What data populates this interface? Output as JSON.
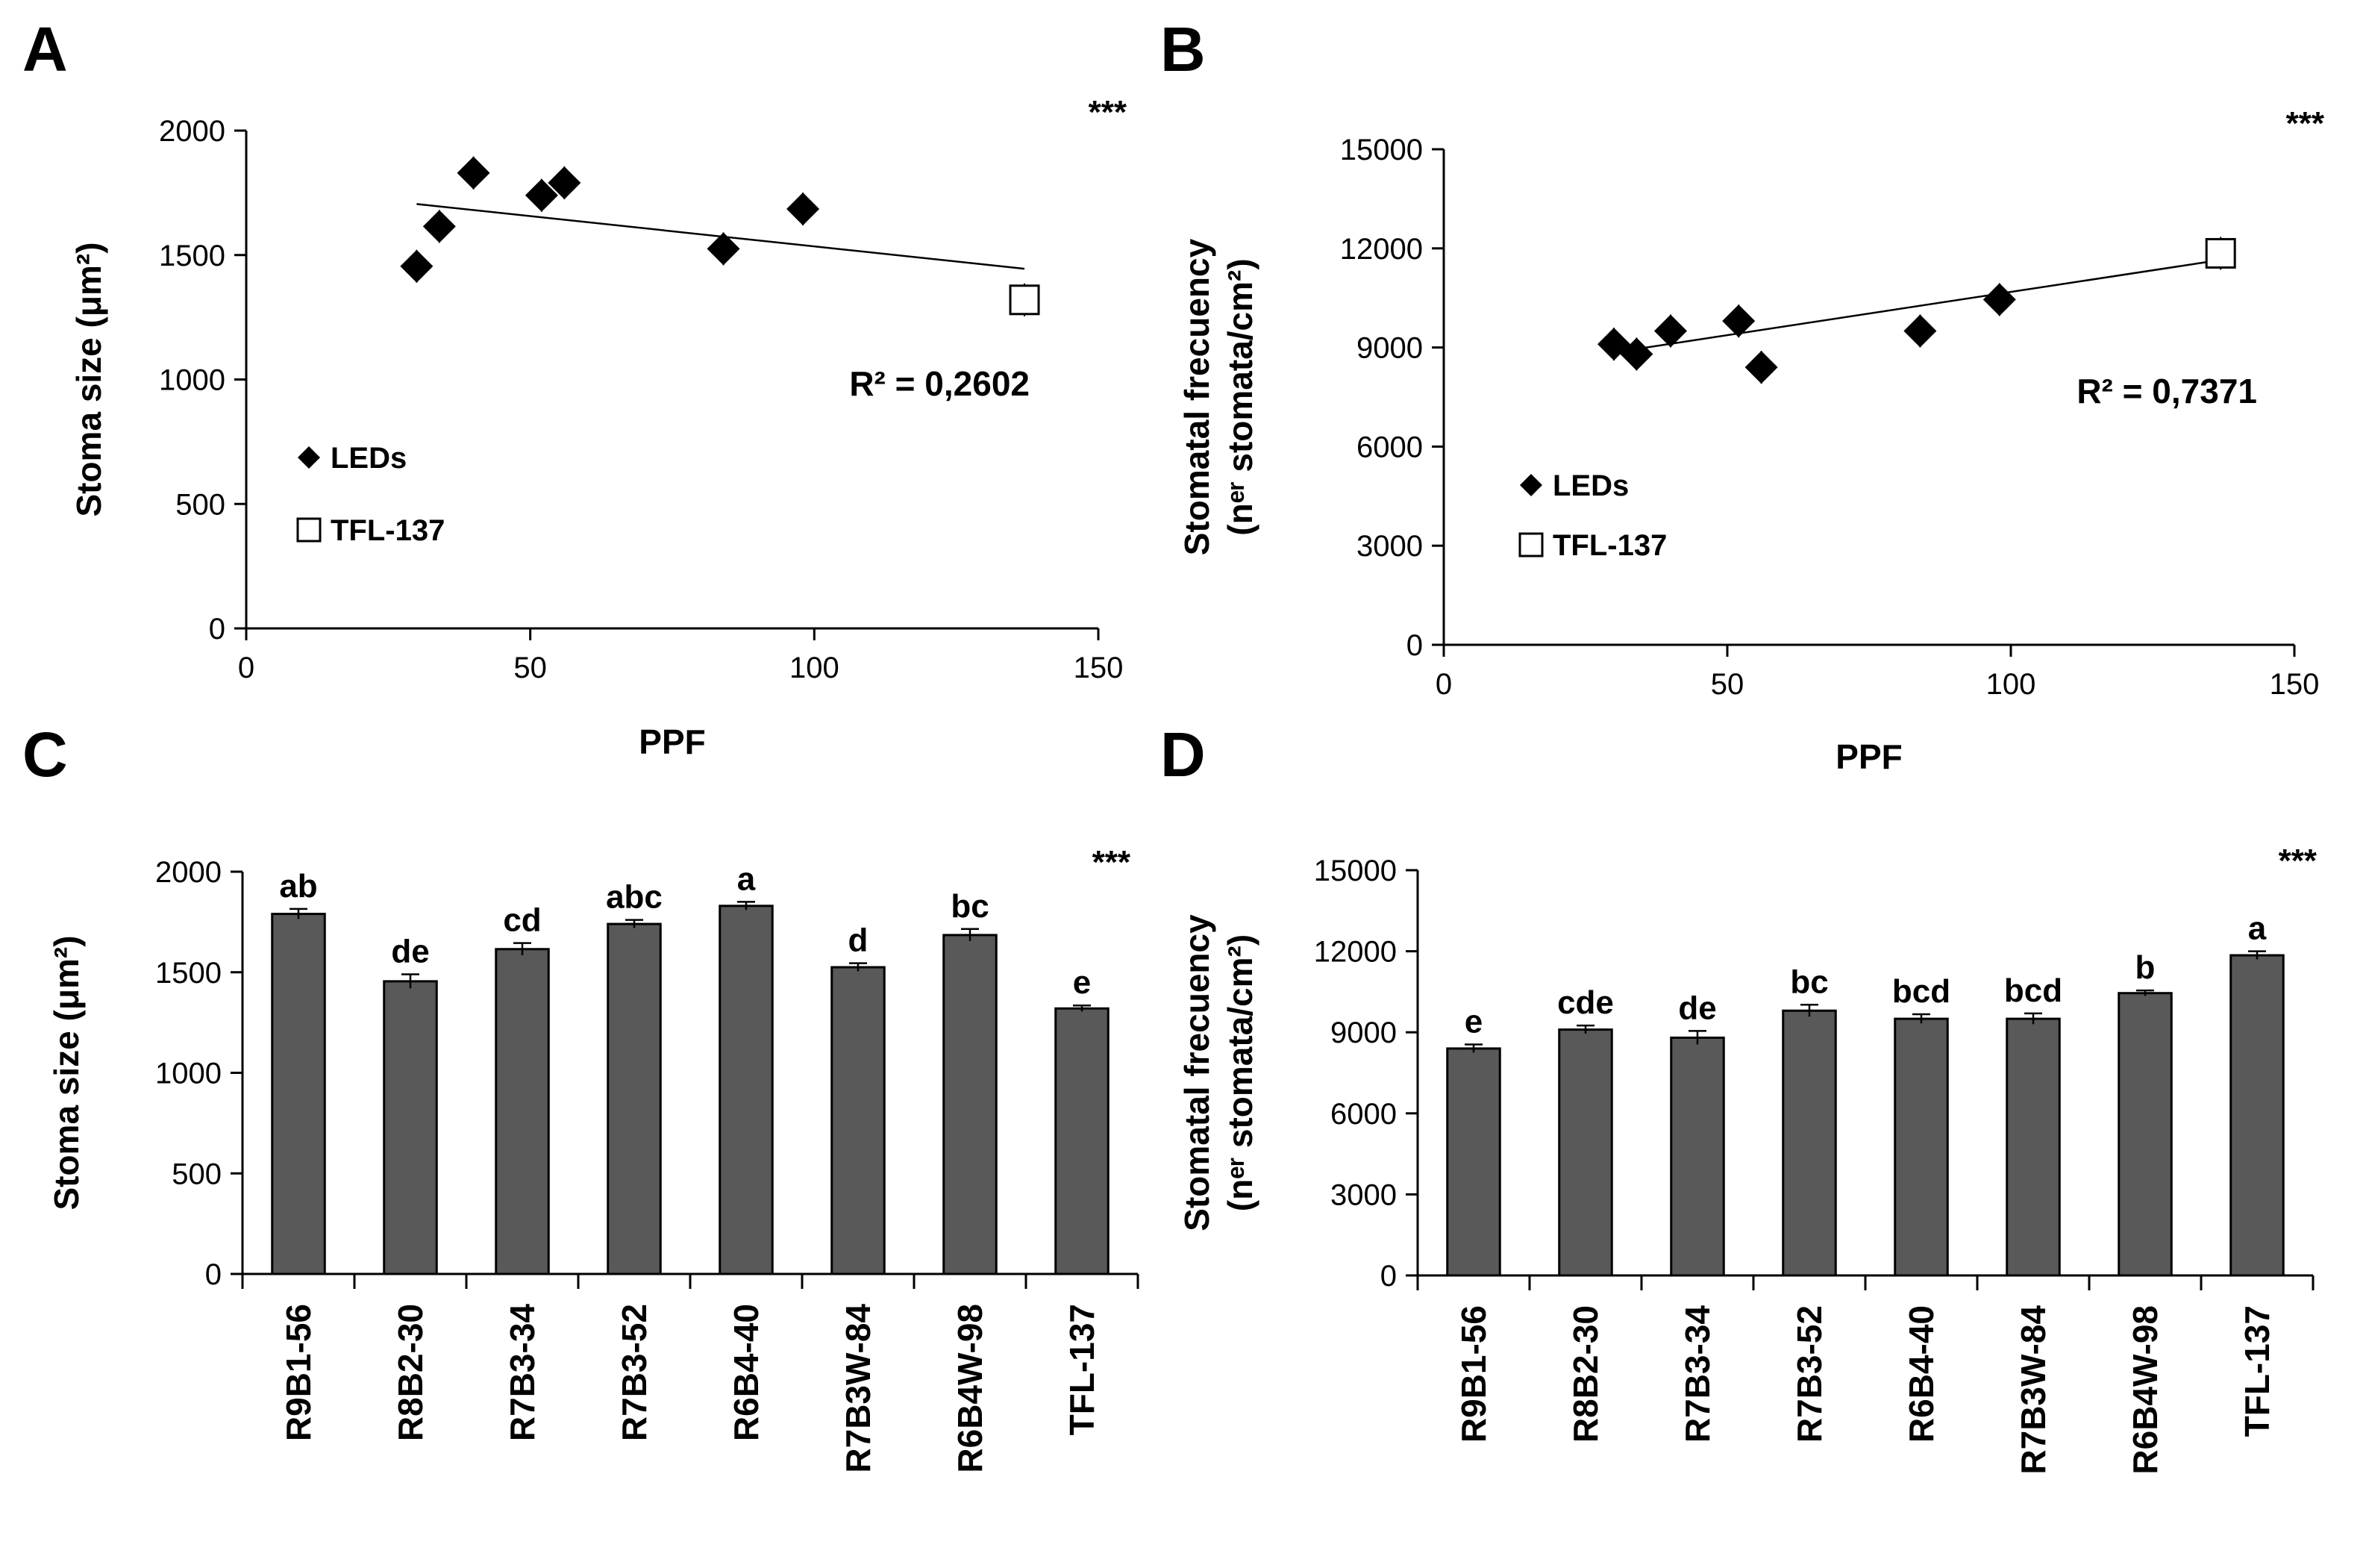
{
  "chart_data": [
    {
      "panel": "A",
      "type": "scatter",
      "xlabel": "PPF",
      "ylabel": "Stoma size (μm²)",
      "xlim": [
        0,
        150
      ],
      "ylim": [
        0,
        2000
      ],
      "xticks": [
        0,
        50,
        100,
        150
      ],
      "yticks": [
        0,
        500,
        1000,
        1500,
        2000
      ],
      "series": [
        {
          "name": "LEDs",
          "marker": "filled-diamond",
          "x": [
            30,
            34,
            40,
            52,
            56,
            84,
            98
          ],
          "y": [
            1455,
            1615,
            1830,
            1740,
            1790,
            1525,
            1685
          ]
        },
        {
          "name": "TFL-137",
          "marker": "open-square",
          "x": [
            137
          ],
          "y": [
            1320
          ]
        }
      ],
      "trendline": {
        "x": [
          30,
          137
        ],
        "y": [
          1705,
          1445
        ]
      },
      "r2_label": "R² = 0,2602",
      "significance": "***",
      "legend_position": "center-left"
    },
    {
      "panel": "B",
      "type": "scatter",
      "xlabel": "PPF",
      "ylabel_line1": "Stomatal frecuency",
      "ylabel_line2": "(nᵉʳ stomata/cm²)",
      "xlim": [
        0,
        150
      ],
      "ylim": [
        0,
        15000
      ],
      "xticks": [
        0,
        50,
        100,
        150
      ],
      "yticks": [
        0,
        3000,
        6000,
        9000,
        12000,
        15000
      ],
      "series": [
        {
          "name": "LEDs",
          "marker": "filled-diamond",
          "x": [
            30,
            34,
            40,
            52,
            56,
            84,
            98
          ],
          "y": [
            9100,
            8800,
            9500,
            9800,
            8400,
            9500,
            10450
          ]
        },
        {
          "name": "TFL-137",
          "marker": "open-square",
          "x": [
            137
          ],
          "y": [
            11850
          ]
        }
      ],
      "trendline": {
        "x": [
          30,
          137
        ],
        "y": [
          8850,
          11650
        ]
      },
      "r2_label": "R² = 0,7371",
      "significance": "***",
      "legend_position": "bottom-left"
    },
    {
      "panel": "C",
      "type": "bar",
      "ylabel": "Stoma size (μm²)",
      "ylim": [
        0,
        2000
      ],
      "yticks": [
        0,
        500,
        1000,
        1500,
        2000
      ],
      "categories": [
        "R9B1-56",
        "R8B2-30",
        "R7B3-34",
        "R7B3-52",
        "R6B4-40",
        "R7B3W-84",
        "R6B4W-98",
        "TFL-137"
      ],
      "values": [
        1790,
        1455,
        1615,
        1740,
        1830,
        1525,
        1685,
        1320
      ],
      "errors": [
        25,
        35,
        30,
        20,
        20,
        20,
        30,
        15
      ],
      "letters": [
        "ab",
        "de",
        "cd",
        "abc",
        "a",
        "d",
        "bc",
        "e"
      ],
      "significance": "***"
    },
    {
      "panel": "D",
      "type": "bar",
      "ylabel_line1": "Stomatal frecuency",
      "ylabel_line2": "(nᵉʳ stomata/cm²)",
      "ylim": [
        0,
        15000
      ],
      "yticks": [
        0,
        3000,
        6000,
        9000,
        12000,
        15000
      ],
      "categories": [
        "R9B1-56",
        "R8B2-30",
        "R7B3-34",
        "R7B3-52",
        "R6B4-40",
        "R7B3W-84",
        "R6B4W-98",
        "TFL-137"
      ],
      "values": [
        8400,
        9100,
        8800,
        9800,
        9500,
        9500,
        10450,
        11850
      ],
      "errors": [
        150,
        150,
        250,
        220,
        170,
        200,
        100,
        150
      ],
      "letters": [
        "e",
        "cde",
        "de",
        "bc",
        "bcd",
        "bcd",
        "b",
        "a"
      ],
      "significance": "***"
    }
  ]
}
